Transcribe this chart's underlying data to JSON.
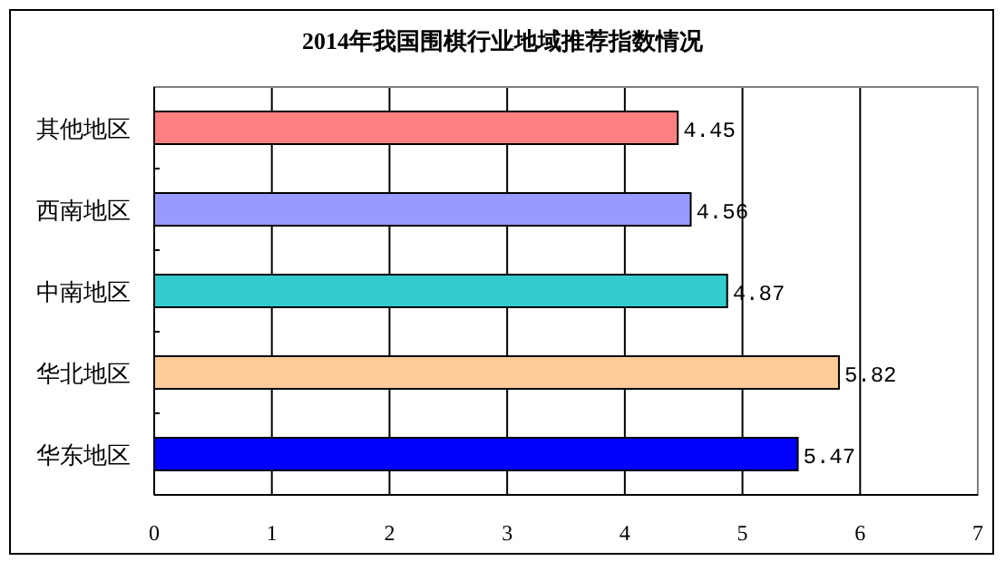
{
  "chart_data": {
    "type": "bar",
    "orientation": "horizontal",
    "title": "2014年我国围棋行业地域推荐指数情况",
    "categories": [
      "其他地区",
      "西南地区",
      "中南地区",
      "华北地区",
      "华东地区"
    ],
    "values": [
      4.45,
      4.56,
      4.87,
      5.82,
      5.47
    ],
    "colors": [
      "#ff8080",
      "#9999ff",
      "#33cccc",
      "#ffcc99",
      "#0000ff"
    ],
    "xlim": [
      0,
      7
    ],
    "xticks": [
      0,
      1,
      2,
      3,
      4,
      5,
      6,
      7
    ],
    "grid": "x",
    "data_labels": true
  }
}
